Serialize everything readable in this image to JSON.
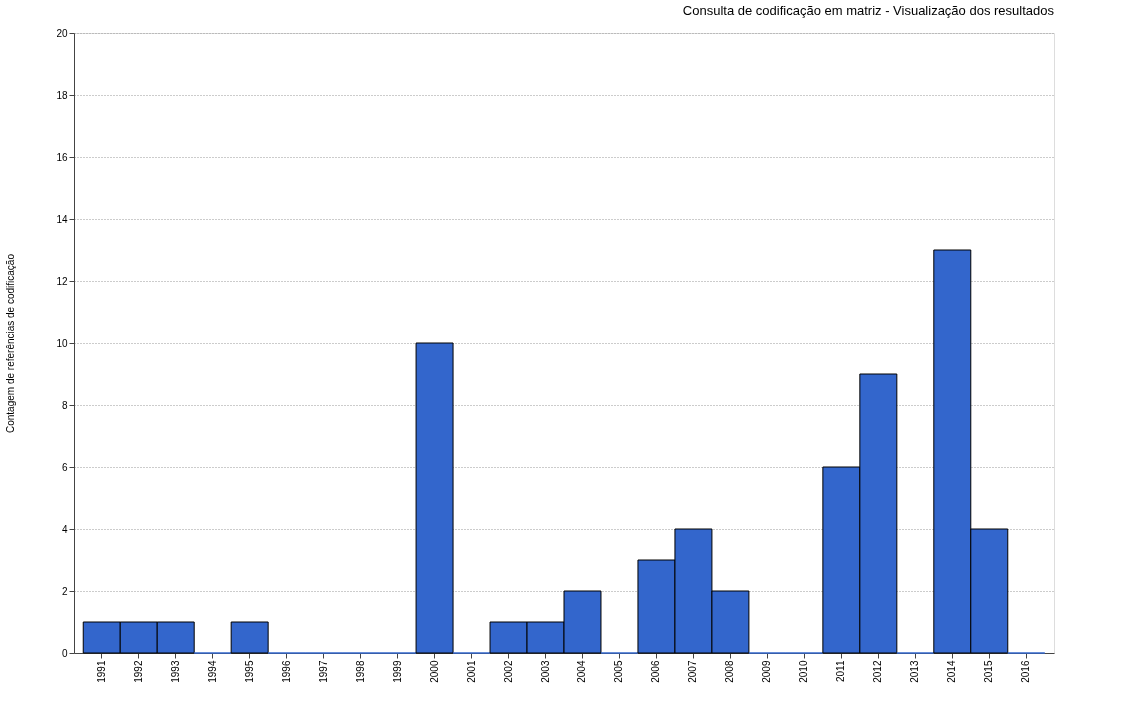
{
  "chart_data": {
    "type": "bar",
    "title": "Consulta de codificação em matriz - Visualização dos resultados",
    "ylabel": "Contagem de referências de codificação",
    "categories": [
      "1991",
      "1992",
      "1993",
      "1994",
      "1995",
      "1996",
      "1997",
      "1998",
      "1999",
      "2000",
      "2001",
      "2002",
      "2003",
      "2004",
      "2005",
      "2006",
      "2007",
      "2008",
      "2009",
      "2010",
      "2011",
      "2012",
      "2013",
      "2014",
      "2015",
      "2016"
    ],
    "values": [
      1,
      1,
      1,
      0,
      1,
      0,
      0,
      0,
      0,
      10,
      0,
      1,
      1,
      2,
      0,
      3,
      4,
      2,
      0,
      0,
      6,
      9,
      0,
      13,
      4,
      0
    ],
    "color": "#3366cc",
    "ylim": [
      0,
      20
    ],
    "yticks": [
      0,
      2,
      4,
      6,
      8,
      10,
      12,
      14,
      16,
      18,
      20
    ],
    "grid": "y"
  }
}
